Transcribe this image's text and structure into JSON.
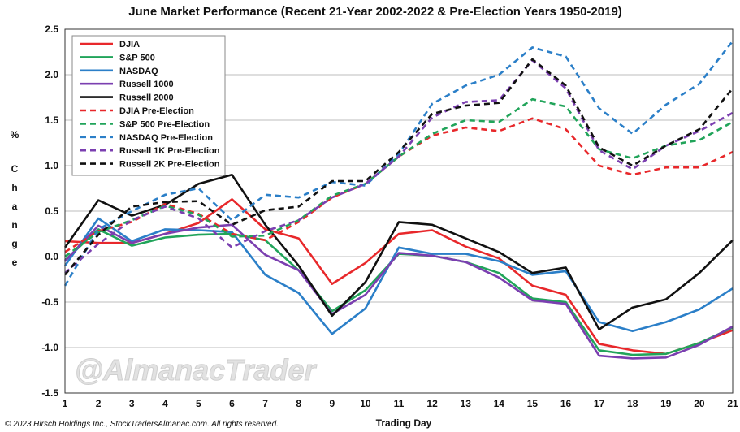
{
  "chart_data": {
    "type": "line",
    "title": "June Market Performance (Recent 21-Year 2002-2022 & Pre-Election Years 1950-2019)",
    "xlabel": "Trading Day",
    "ylabel": "% Change",
    "ylabel_top": "%",
    "ylabel_bottom": "Change",
    "x": [
      1,
      2,
      3,
      4,
      5,
      6,
      7,
      8,
      9,
      10,
      11,
      12,
      13,
      14,
      15,
      16,
      17,
      18,
      19,
      20,
      21
    ],
    "xlim": [
      1,
      21
    ],
    "ylim": [
      -1.5,
      2.5
    ],
    "yticks": [
      "2.5",
      "2.0",
      "1.5",
      "1.0",
      "0.5",
      "0.0",
      "-0.5",
      "-1.0",
      "-1.5"
    ],
    "ytick_values": [
      2.5,
      2.0,
      1.5,
      1.0,
      0.5,
      0.0,
      -0.5,
      -1.0,
      -1.5
    ],
    "grid": "horizontal",
    "legend_position": "top-left",
    "series": [
      {
        "name": "DJIA",
        "color": "#e8282b",
        "style": "solid",
        "values": [
          0.17,
          0.15,
          0.15,
          0.25,
          0.37,
          0.63,
          0.3,
          0.2,
          -0.3,
          -0.07,
          0.25,
          0.29,
          0.11,
          -0.02,
          -0.32,
          -0.42,
          -0.96,
          -1.03,
          -1.07,
          -0.95,
          -0.81
        ]
      },
      {
        "name": "S&P 500",
        "color": "#21a45a",
        "style": "solid",
        "values": [
          -0.04,
          0.3,
          0.12,
          0.21,
          0.24,
          0.25,
          0.18,
          -0.15,
          -0.6,
          -0.37,
          0.03,
          0.01,
          -0.06,
          -0.18,
          -0.46,
          -0.5,
          -1.03,
          -1.08,
          -1.07,
          -0.95,
          -0.78
        ]
      },
      {
        "name": "NASDAQ",
        "color": "#2b7fc8",
        "style": "solid",
        "values": [
          -0.1,
          0.42,
          0.17,
          0.3,
          0.29,
          0.27,
          -0.2,
          -0.4,
          -0.85,
          -0.57,
          0.1,
          0.03,
          0.03,
          -0.05,
          -0.2,
          -0.16,
          -0.72,
          -0.82,
          -0.72,
          -0.58,
          -0.35
        ]
      },
      {
        "name": "Russell 1000",
        "color": "#7b3fb0",
        "style": "solid",
        "values": [
          -0.05,
          0.34,
          0.15,
          0.25,
          0.32,
          0.35,
          0.02,
          -0.15,
          -0.63,
          -0.42,
          0.04,
          0.01,
          -0.06,
          -0.23,
          -0.48,
          -0.52,
          -1.09,
          -1.12,
          -1.11,
          -0.97,
          -0.77
        ]
      },
      {
        "name": "Russell 2000",
        "color": "#111111",
        "style": "solid",
        "values": [
          0.1,
          0.62,
          0.45,
          0.57,
          0.8,
          0.9,
          0.35,
          -0.1,
          -0.65,
          -0.28,
          0.38,
          0.35,
          0.2,
          0.05,
          -0.18,
          -0.12,
          -0.8,
          -0.56,
          -0.47,
          -0.18,
          0.18
        ]
      },
      {
        "name": "DJIA Pre-Election",
        "color": "#e8282b",
        "style": "dashed",
        "values": [
          0.05,
          0.28,
          0.38,
          0.58,
          0.47,
          0.25,
          0.18,
          0.38,
          0.65,
          0.8,
          1.1,
          1.33,
          1.42,
          1.38,
          1.52,
          1.4,
          1.0,
          0.9,
          0.98,
          0.98,
          1.15
        ]
      },
      {
        "name": "S&P 500 Pre-Election",
        "color": "#21a45a",
        "style": "dashed",
        "values": [
          0.0,
          0.27,
          0.4,
          0.56,
          0.46,
          0.22,
          0.23,
          0.4,
          0.67,
          0.8,
          1.1,
          1.35,
          1.5,
          1.48,
          1.73,
          1.65,
          1.18,
          1.08,
          1.22,
          1.28,
          1.48
        ]
      },
      {
        "name": "NASDAQ Pre-Election",
        "color": "#2b7fc8",
        "style": "dashed",
        "values": [
          -0.32,
          0.3,
          0.5,
          0.68,
          0.75,
          0.4,
          0.68,
          0.65,
          0.82,
          0.78,
          1.13,
          1.68,
          1.88,
          2.0,
          2.3,
          2.2,
          1.63,
          1.35,
          1.67,
          1.9,
          2.37
        ]
      },
      {
        "name": "Russell 1K Pre-Election",
        "color": "#7b3fb0",
        "style": "dashed",
        "values": [
          -0.18,
          0.14,
          0.4,
          0.55,
          0.42,
          0.1,
          0.28,
          0.4,
          0.65,
          0.8,
          1.1,
          1.53,
          1.7,
          1.72,
          2.16,
          1.85,
          1.17,
          0.96,
          1.22,
          1.38,
          1.58
        ]
      },
      {
        "name": "Russell 2K Pre-Election",
        "color": "#111111",
        "style": "dashed",
        "values": [
          -0.2,
          0.24,
          0.55,
          0.6,
          0.61,
          0.35,
          0.51,
          0.55,
          0.83,
          0.83,
          1.15,
          1.57,
          1.66,
          1.69,
          2.17,
          1.88,
          1.2,
          1.0,
          1.22,
          1.4,
          1.85
        ]
      }
    ],
    "annotations": [
      "@AlmanacTrader",
      "© 2023 Hirsch Holdings Inc., StockTradersAlmanac.com. All rights reserved."
    ]
  }
}
